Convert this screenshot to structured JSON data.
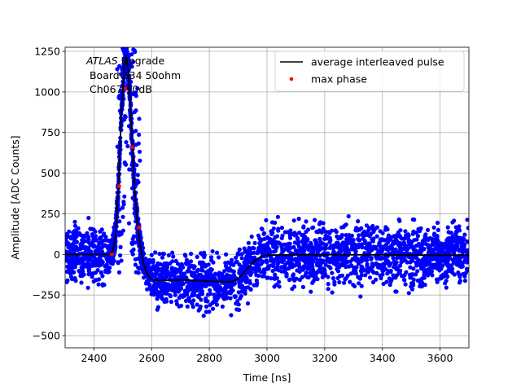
{
  "chart_data": {
    "type": "scatter",
    "xlabel": "Time [ns]",
    "ylabel": "Amplitude [ADC Counts]",
    "xlim": [
      2300,
      3700
    ],
    "ylim": [
      -575,
      1275
    ],
    "xticks": [
      2400,
      2600,
      2800,
      3000,
      3200,
      3400,
      3600
    ],
    "yticks": [
      -500,
      -250,
      0,
      250,
      500,
      750,
      1000,
      1250
    ],
    "grid": true,
    "legend_position": "top-right",
    "annotation": {
      "italic": "ATLAS",
      "line1_rest": " Upgrade",
      "line2": " Board 634 50ohm",
      "line3": " Ch067 50dB"
    },
    "series": [
      {
        "name": "average interleaved pulse",
        "kind": "line",
        "color": "#000000",
        "x": [
          2300,
          2400,
          2450,
          2465,
          2475,
          2485,
          2495,
          2505,
          2512,
          2520,
          2530,
          2540,
          2550,
          2560,
          2570,
          2580,
          2590,
          2600,
          2620,
          2650,
          2700,
          2750,
          2800,
          2850,
          2880,
          2900,
          2920,
          2940,
          2960,
          2980,
          3000,
          3100,
          3200,
          3300,
          3400,
          3500,
          3600,
          3700
        ],
        "y": [
          0,
          0,
          0,
          20,
          120,
          420,
          860,
          1160,
          1220,
          1120,
          780,
          430,
          200,
          60,
          -40,
          -100,
          -135,
          -155,
          -160,
          -160,
          -158,
          -160,
          -165,
          -168,
          -168,
          -150,
          -110,
          -70,
          -35,
          -12,
          -5,
          -2,
          -2,
          -3,
          -3,
          -4,
          -5,
          -5
        ]
      },
      {
        "name": "max phase",
        "kind": "points",
        "color": "#ff0000",
        "x": [
          2462,
          2487,
          2510,
          2533,
          2556
        ],
        "y": [
          0,
          420,
          1020,
          660,
          165
        ]
      }
    ],
    "noise_cloud": {
      "color": "#0000ff",
      "description": "dense blue scatter of individual samples around the average pulse",
      "x_range": [
        2300,
        3700
      ],
      "pre_pulse_halfwidth": 250,
      "undershoot_halfwidth": 230,
      "post_pulse_halfwidth": 270
    }
  }
}
